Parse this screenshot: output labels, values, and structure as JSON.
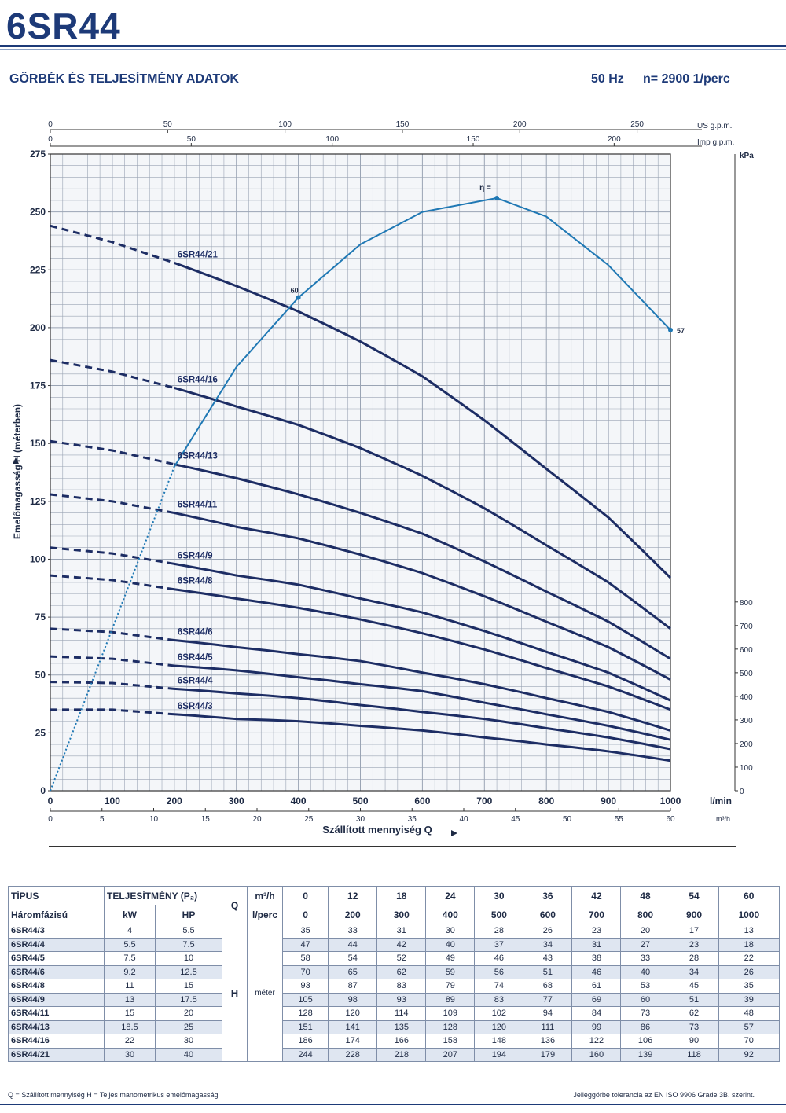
{
  "header": {
    "title": "6SR44",
    "subtitle": "GÖRBÉK ÉS TELJESÍTMÉNY ADATOK",
    "frequency": "50 Hz",
    "speed": "n= 2900 1/perc"
  },
  "chart_data": {
    "type": "line",
    "x_axis_label": "Szállított mennyiség Q",
    "x_unit": "l/min",
    "x_range": [
      0,
      1000
    ],
    "x_ticks": [
      0,
      100,
      200,
      300,
      400,
      500,
      600,
      700,
      800,
      900,
      1000
    ],
    "m3h_unit": "m³/h",
    "m3h_ticks": [
      0,
      5,
      10,
      15,
      20,
      25,
      30,
      35,
      40,
      45,
      50,
      55,
      60
    ],
    "usgpm_unit": "US g.p.m.",
    "usgpm_ticks": [
      0,
      50,
      100,
      150,
      200,
      250
    ],
    "impgpm_unit": "Imp g.p.m.",
    "impgpm_ticks": [
      0,
      50,
      100,
      150,
      200
    ],
    "y_axis_label": "Emelőmagasság H (méterben)",
    "y_range": [
      0,
      275
    ],
    "y_ticks": [
      0,
      25,
      50,
      75,
      100,
      125,
      150,
      175,
      200,
      225,
      250,
      275
    ],
    "right_unit": "kPa",
    "right_ticks": [
      0,
      100,
      200,
      300,
      400,
      500,
      600,
      700,
      800
    ],
    "grid": true,
    "curve_x": [
      200,
      300,
      400,
      500,
      600,
      700,
      800,
      900,
      1000
    ],
    "series": [
      {
        "name": "6SR44/21",
        "h0": 244,
        "values": [
          228,
          218,
          207,
          194,
          179,
          160,
          139,
          118,
          92
        ]
      },
      {
        "name": "6SR44/16",
        "h0": 186,
        "values": [
          174,
          166,
          158,
          148,
          136,
          122,
          106,
          90,
          70
        ]
      },
      {
        "name": "6SR44/13",
        "h0": 151,
        "values": [
          141,
          135,
          128,
          120,
          111,
          99,
          86,
          73,
          57
        ]
      },
      {
        "name": "6SR44/11",
        "h0": 128,
        "values": [
          120,
          114,
          109,
          102,
          94,
          84,
          73,
          62,
          48
        ]
      },
      {
        "name": "6SR44/9",
        "h0": 105,
        "values": [
          98,
          93,
          89,
          83,
          77,
          69,
          60,
          51,
          39
        ]
      },
      {
        "name": "6SR44/8",
        "h0": 93,
        "values": [
          87,
          83,
          79,
          74,
          68,
          61,
          53,
          45,
          35
        ]
      },
      {
        "name": "6SR44/6",
        "h0": 70,
        "values": [
          65,
          62,
          59,
          56,
          51,
          46,
          40,
          34,
          26
        ]
      },
      {
        "name": "6SR44/5",
        "h0": 58,
        "values": [
          54,
          52,
          49,
          46,
          43,
          38,
          33,
          28,
          22
        ]
      },
      {
        "name": "6SR44/4",
        "h0": 47,
        "values": [
          44,
          42,
          40,
          37,
          34,
          31,
          27,
          23,
          18
        ]
      },
      {
        "name": "6SR44/3",
        "h0": 35,
        "values": [
          33,
          31,
          30,
          28,
          26,
          23,
          20,
          17,
          13
        ]
      }
    ],
    "efficiency": {
      "label": "η =",
      "x": [
        0,
        100,
        200,
        300,
        400,
        500,
        600,
        700,
        720,
        800,
        900,
        1000
      ],
      "y": [
        0,
        70,
        140,
        183,
        213,
        236,
        250,
        255,
        256,
        248,
        227,
        199
      ],
      "annotations": [
        {
          "x": 400,
          "y": 213,
          "text": "60"
        },
        {
          "x": 1000,
          "y": 199,
          "text": "57"
        }
      ]
    },
    "line_color": "#1d2d64",
    "efficiency_color": "#1f78b4",
    "grid_color": "#9aa4b4"
  },
  "table": {
    "col_tipus": "TÍPUS",
    "col_phase": "Háromfázisú",
    "col_power": "TELJESÍTMÉNY (P₂)",
    "col_kw": "kW",
    "col_hp": "HP",
    "col_q": "Q",
    "unit_m3h": "m³/h",
    "unit_lperc": "l/perc",
    "col_h": "H",
    "col_meter": "méter",
    "m3h_values": [
      "0",
      "12",
      "18",
      "24",
      "30",
      "36",
      "42",
      "48",
      "54",
      "60"
    ],
    "lperc_values": [
      "0",
      "200",
      "300",
      "400",
      "500",
      "600",
      "700",
      "800",
      "900",
      "1000"
    ],
    "rows": [
      {
        "model": "6SR44/3",
        "kw": "4",
        "hp": "5.5",
        "h": [
          "35",
          "33",
          "31",
          "30",
          "28",
          "26",
          "23",
          "20",
          "17",
          "13"
        ]
      },
      {
        "model": "6SR44/4",
        "kw": "5.5",
        "hp": "7.5",
        "h": [
          "47",
          "44",
          "42",
          "40",
          "37",
          "34",
          "31",
          "27",
          "23",
          "18"
        ]
      },
      {
        "model": "6SR44/5",
        "kw": "7.5",
        "hp": "10",
        "h": [
          "58",
          "54",
          "52",
          "49",
          "46",
          "43",
          "38",
          "33",
          "28",
          "22"
        ]
      },
      {
        "model": "6SR44/6",
        "kw": "9.2",
        "hp": "12.5",
        "h": [
          "70",
          "65",
          "62",
          "59",
          "56",
          "51",
          "46",
          "40",
          "34",
          "26"
        ]
      },
      {
        "model": "6SR44/8",
        "kw": "11",
        "hp": "15",
        "h": [
          "93",
          "87",
          "83",
          "79",
          "74",
          "68",
          "61",
          "53",
          "45",
          "35"
        ]
      },
      {
        "model": "6SR44/9",
        "kw": "13",
        "hp": "17.5",
        "h": [
          "105",
          "98",
          "93",
          "89",
          "83",
          "77",
          "69",
          "60",
          "51",
          "39"
        ]
      },
      {
        "model": "6SR44/11",
        "kw": "15",
        "hp": "20",
        "h": [
          "128",
          "120",
          "114",
          "109",
          "102",
          "94",
          "84",
          "73",
          "62",
          "48"
        ]
      },
      {
        "model": "6SR44/13",
        "kw": "18.5",
        "hp": "25",
        "h": [
          "151",
          "141",
          "135",
          "128",
          "120",
          "111",
          "99",
          "86",
          "73",
          "57"
        ]
      },
      {
        "model": "6SR44/16",
        "kw": "22",
        "hp": "30",
        "h": [
          "186",
          "174",
          "166",
          "158",
          "148",
          "136",
          "122",
          "106",
          "90",
          "70"
        ]
      },
      {
        "model": "6SR44/21",
        "kw": "30",
        "hp": "40",
        "h": [
          "244",
          "228",
          "218",
          "207",
          "194",
          "179",
          "160",
          "139",
          "118",
          "92"
        ]
      }
    ]
  },
  "footer": {
    "legend": "Q = Szállított mennyiség   H = Teljes manometrikus emelőmagasság",
    "tolerance": "Jelleggörbe tolerancia az EN ISO 9906 Grade 3B. szerint."
  }
}
